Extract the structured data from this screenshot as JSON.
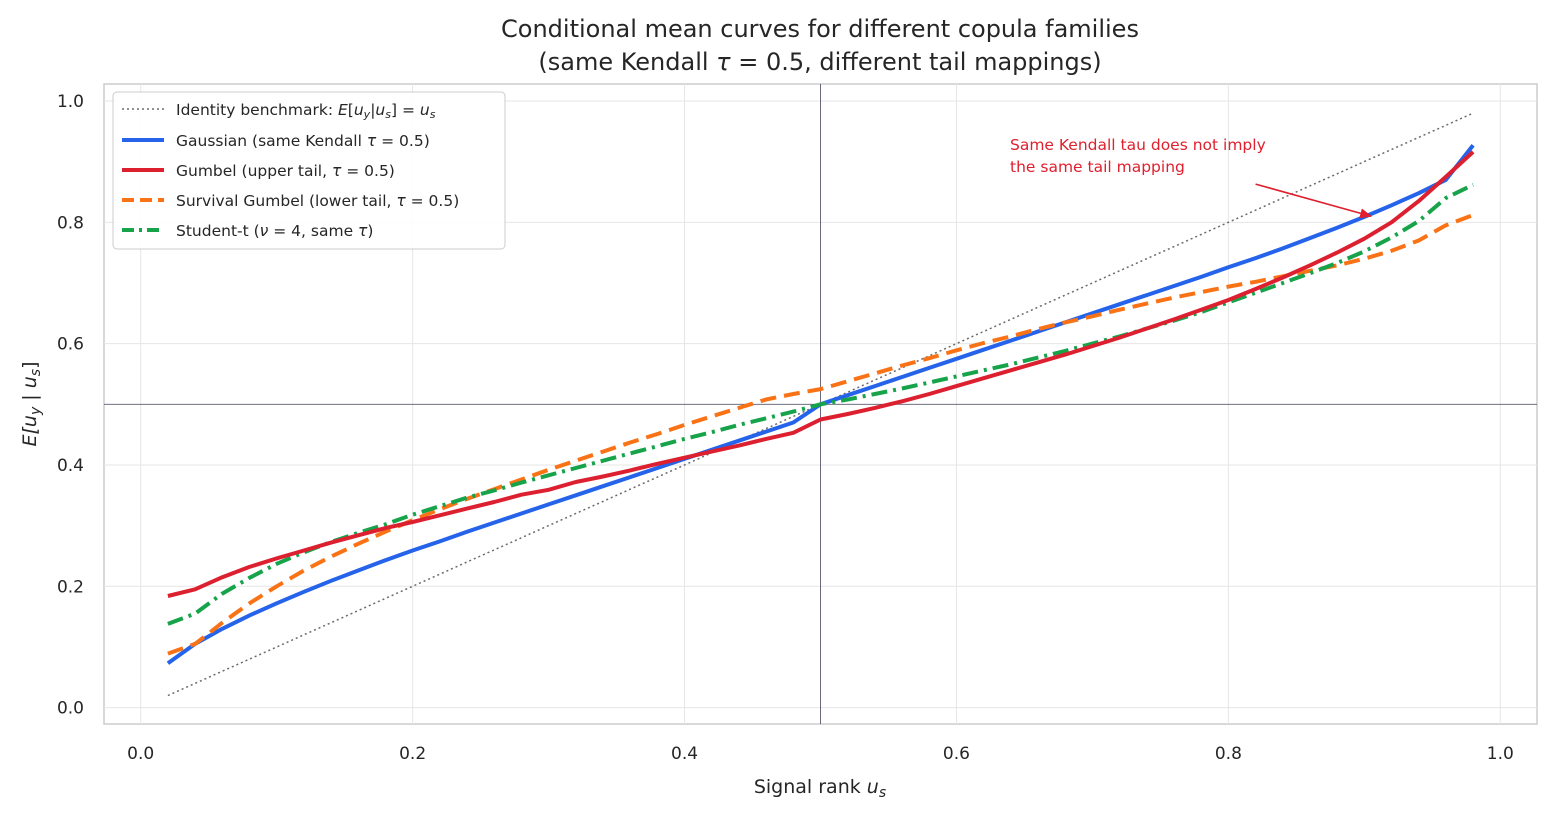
{
  "chart_data": {
    "type": "line",
    "title_line1": "Conditional mean curves for different copula families",
    "title_line2_prefix": "(same Kendall ",
    "title_line2_tau": "τ",
    "title_line2_eq": " = 0.5",
    "title_line2_suffix": ", different tail mappings)",
    "xlabel_text": "Signal rank ",
    "xlabel_var": "u",
    "xlabel_sub": "s",
    "ylabel_prefix": "E[",
    "ylabel_var1": "u",
    "ylabel_sub1": "y",
    "ylabel_mid": " | ",
    "ylabel_var2": "u",
    "ylabel_sub2": "s",
    "ylabel_suffix": "]",
    "xlim": [
      -0.027,
      1.027
    ],
    "ylim": [
      -0.027,
      1.028
    ],
    "xticks": [
      "0.0",
      "0.2",
      "0.4",
      "0.6",
      "0.8",
      "1.0"
    ],
    "yticks": [
      "0.0",
      "0.2",
      "0.4",
      "0.6",
      "0.8",
      "1.0"
    ],
    "grid": true,
    "legend_position": "upper-left",
    "reference_lines": {
      "x": 0.5,
      "y": 0.5
    },
    "colors": {
      "identity": "#6b6b6b",
      "gaussian": "#2563eb",
      "gumbel": "#dc2030",
      "survival_gumbel": "#f97316",
      "student_t": "#16a34a",
      "annotation": "#e0202e"
    },
    "legend": [
      {
        "key": "identity",
        "label": "Identity benchmark: E[u_y|u_s] = u_s"
      },
      {
        "key": "gaussian",
        "label": "Gaussian (same Kendall τ = 0.5)"
      },
      {
        "key": "gumbel",
        "label": "Gumbel (upper tail, τ = 0.5)"
      },
      {
        "key": "survival_gumbel",
        "label": "Survival Gumbel (lower tail, τ = 0.5)"
      },
      {
        "key": "student_t",
        "label": "Student-t (ν = 4, same τ)"
      }
    ],
    "x": [
      0.02,
      0.04,
      0.06,
      0.08,
      0.1,
      0.12,
      0.14,
      0.16,
      0.18,
      0.2,
      0.22,
      0.24,
      0.26,
      0.28,
      0.3,
      0.32,
      0.34,
      0.36,
      0.38,
      0.4,
      0.42,
      0.44,
      0.46,
      0.48,
      0.5,
      0.52,
      0.54,
      0.56,
      0.58,
      0.6,
      0.62,
      0.64,
      0.66,
      0.68,
      0.7,
      0.72,
      0.74,
      0.76,
      0.78,
      0.8,
      0.82,
      0.84,
      0.86,
      0.88,
      0.9,
      0.92,
      0.94,
      0.96,
      0.98
    ],
    "series": [
      {
        "key": "identity",
        "values": [
          0.02,
          0.04,
          0.06,
          0.08,
          0.1,
          0.12,
          0.14,
          0.16,
          0.18,
          0.2,
          0.22,
          0.24,
          0.26,
          0.28,
          0.3,
          0.32,
          0.34,
          0.36,
          0.38,
          0.4,
          0.42,
          0.44,
          0.46,
          0.48,
          0.5,
          0.52,
          0.54,
          0.56,
          0.58,
          0.6,
          0.62,
          0.64,
          0.66,
          0.68,
          0.7,
          0.72,
          0.74,
          0.76,
          0.78,
          0.8,
          0.82,
          0.84,
          0.86,
          0.88,
          0.9,
          0.92,
          0.94,
          0.96,
          0.98
        ]
      },
      {
        "key": "gaussian",
        "values": [
          0.073,
          0.105,
          0.13,
          0.152,
          0.172,
          0.191,
          0.209,
          0.226,
          0.243,
          0.259,
          0.274,
          0.29,
          0.305,
          0.32,
          0.335,
          0.35,
          0.365,
          0.38,
          0.395,
          0.41,
          0.425,
          0.44,
          0.455,
          0.47,
          0.5,
          0.515,
          0.53,
          0.545,
          0.56,
          0.575,
          0.59,
          0.605,
          0.62,
          0.635,
          0.65,
          0.665,
          0.68,
          0.695,
          0.71,
          0.726,
          0.741,
          0.757,
          0.774,
          0.791,
          0.809,
          0.828,
          0.848,
          0.87,
          0.927
        ]
      },
      {
        "key": "gumbel",
        "values": [
          0.184,
          0.195,
          0.215,
          0.232,
          0.246,
          0.259,
          0.272,
          0.284,
          0.296,
          0.306,
          0.317,
          0.328,
          0.339,
          0.351,
          0.359,
          0.372,
          0.381,
          0.391,
          0.402,
          0.412,
          0.422,
          0.432,
          0.443,
          0.453,
          0.475,
          0.484,
          0.494,
          0.505,
          0.517,
          0.53,
          0.543,
          0.556,
          0.569,
          0.582,
          0.596,
          0.61,
          0.625,
          0.64,
          0.656,
          0.672,
          0.69,
          0.709,
          0.729,
          0.75,
          0.773,
          0.8,
          0.835,
          0.875,
          0.916
        ]
      },
      {
        "key": "survival_gumbel",
        "values": [
          0.089,
          0.105,
          0.14,
          0.172,
          0.2,
          0.226,
          0.249,
          0.27,
          0.29,
          0.309,
          0.327,
          0.344,
          0.36,
          0.376,
          0.392,
          0.407,
          0.422,
          0.437,
          0.451,
          0.466,
          0.48,
          0.494,
          0.508,
          0.517,
          0.525,
          0.538,
          0.551,
          0.564,
          0.576,
          0.589,
          0.601,
          0.612,
          0.624,
          0.635,
          0.645,
          0.656,
          0.666,
          0.676,
          0.685,
          0.694,
          0.702,
          0.711,
          0.72,
          0.729,
          0.74,
          0.753,
          0.77,
          0.795,
          0.812
        ]
      },
      {
        "key": "student_t",
        "values": [
          0.138,
          0.155,
          0.188,
          0.214,
          0.237,
          0.256,
          0.273,
          0.288,
          0.302,
          0.318,
          0.332,
          0.346,
          0.358,
          0.371,
          0.383,
          0.395,
          0.407,
          0.419,
          0.431,
          0.443,
          0.454,
          0.466,
          0.477,
          0.488,
          0.5,
          0.508,
          0.517,
          0.526,
          0.536,
          0.546,
          0.556,
          0.566,
          0.577,
          0.588,
          0.6,
          0.612,
          0.625,
          0.638,
          0.652,
          0.668,
          0.684,
          0.7,
          0.716,
          0.733,
          0.752,
          0.775,
          0.802,
          0.84,
          0.862
        ]
      }
    ],
    "annotation": {
      "line1": "Same Kendall tau does not imply",
      "line2": "the same tail mapping",
      "arrow_from": [
        0.82,
        0.863
      ],
      "arrow_to": [
        0.905,
        0.81
      ]
    }
  }
}
